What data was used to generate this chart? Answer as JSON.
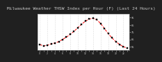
{
  "title": "Milwaukee Weather THSW Index per Hour (F) (Last 24 Hours)",
  "hours": [
    0,
    1,
    2,
    3,
    4,
    5,
    6,
    7,
    8,
    9,
    10,
    11,
    12,
    13,
    14,
    15,
    16,
    17,
    18,
    19,
    20,
    21,
    22,
    23
  ],
  "values": [
    58,
    56,
    57,
    59,
    60,
    62,
    65,
    68,
    72,
    76,
    81,
    86,
    90,
    93,
    94,
    92,
    87,
    80,
    73,
    67,
    62,
    58,
    55,
    53
  ],
  "line_color": "#ff0000",
  "marker_color": "#000000",
  "bg_color": "#202020",
  "plot_bg": "#ffffff",
  "grid_color": "#aaaaaa",
  "title_color": "#cccccc",
  "right_strip_color": "#1a1a1a",
  "ylim": [
    50,
    100
  ],
  "xlim": [
    -0.5,
    23.5
  ],
  "yticks": [
    55,
    65,
    75,
    85,
    95
  ],
  "ytick_labels": [
    "55",
    "65",
    "75",
    "85",
    "95"
  ],
  "title_fontsize": 4.5,
  "axis_fontsize": 3.5,
  "line_width": 0.7,
  "marker_size": 1.5
}
